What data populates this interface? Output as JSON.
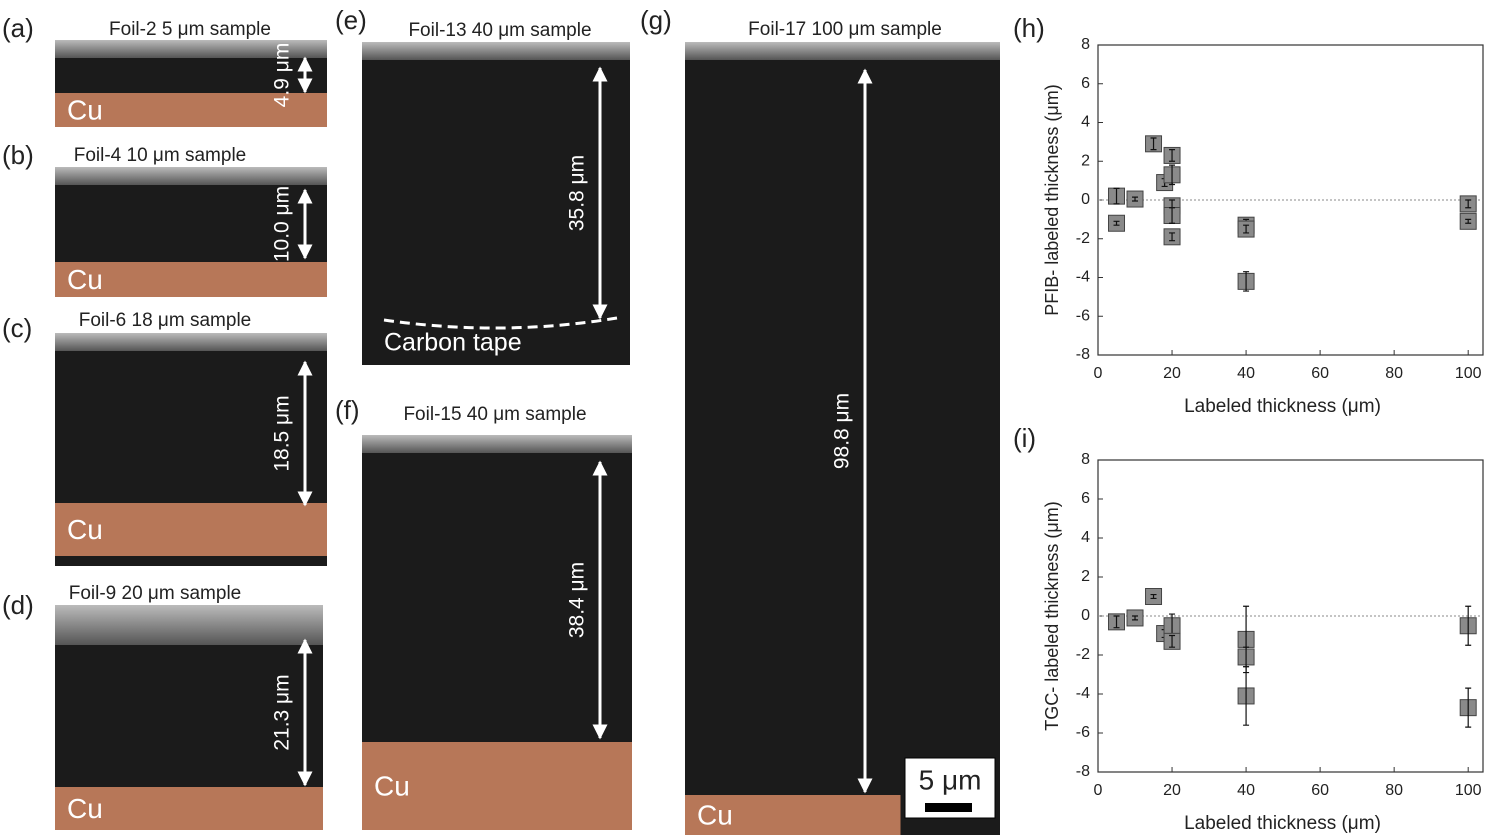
{
  "panels": [
    {
      "letter": "(a)",
      "title": "Foil-2 5 μm sample",
      "thickness": "4.9 μm",
      "substrate": "Cu"
    },
    {
      "letter": "(b)",
      "title": "Foil-4 10 μm sample",
      "thickness": "10.0 μm",
      "substrate": "Cu"
    },
    {
      "letter": "(c)",
      "title": "Foil-6 18 μm sample",
      "thickness": "18.5 μm",
      "substrate": "Cu"
    },
    {
      "letter": "(d)",
      "title": "Foil-9 20 μm sample",
      "thickness": "21.3 μm",
      "substrate": "Cu"
    },
    {
      "letter": "(e)",
      "title": "Foil-13 40 μm sample",
      "thickness": "35.8 μm",
      "substrate": "Carbon tape"
    },
    {
      "letter": "(f)",
      "title": "Foil-15 40 μm sample",
      "thickness": "38.4 μm",
      "substrate": "Cu"
    },
    {
      "letter": "(g)",
      "title": "Foil-17 100 μm sample",
      "thickness": "98.8 μm",
      "substrate": "Cu",
      "scale_bar": "5 μm"
    }
  ],
  "chart_data": [
    {
      "type": "scatter",
      "label": "(h)",
      "x_label": "Labeled thickness (μm)",
      "y_label": "PFIB- labeled thickness (μm)",
      "xlim": [
        0,
        104
      ],
      "ylim": [
        -8,
        8
      ],
      "xticks": [
        0,
        20,
        40,
        60,
        80,
        100
      ],
      "yticks": [
        -8,
        -6,
        -4,
        -2,
        0,
        2,
        4,
        6,
        8
      ],
      "reference_line": 0,
      "series": [
        {
          "color": "#8a8a8a",
          "x": [
            5,
            5,
            10,
            15,
            18,
            20,
            20,
            20,
            20,
            20,
            40,
            40,
            40,
            100,
            100
          ],
          "values": [
            0.2,
            -1.2,
            0.05,
            2.9,
            0.9,
            2.3,
            1.3,
            -0.3,
            -0.8,
            -1.9,
            -1.3,
            -1.5,
            -4.2,
            -0.2,
            -1.1
          ],
          "errors": [
            0.4,
            0.1,
            0.1,
            0.3,
            0.2,
            0.3,
            0.5,
            0.3,
            0.4,
            0.2,
            0.3,
            0.2,
            0.5,
            0.2,
            0.1
          ]
        }
      ]
    },
    {
      "type": "scatter",
      "label": "(i)",
      "x_label": "Labeled thickness (μm)",
      "y_label": "TGC- labeled thickness (μm)",
      "xlim": [
        0,
        104
      ],
      "ylim": [
        -8,
        8
      ],
      "xticks": [
        0,
        20,
        40,
        60,
        80,
        100
      ],
      "yticks": [
        -8,
        -6,
        -4,
        -2,
        0,
        2,
        4,
        6,
        8
      ],
      "reference_line": 0,
      "series": [
        {
          "color": "#8a8a8a",
          "x": [
            5,
            10,
            15,
            18,
            20,
            20,
            40,
            40,
            40,
            100,
            100
          ],
          "values": [
            -0.3,
            -0.1,
            1.0,
            -0.9,
            -0.5,
            -1.3,
            -1.2,
            -2.1,
            -4.1,
            -0.5,
            -4.7
          ],
          "errors": [
            0.3,
            0.1,
            0.1,
            0.2,
            0.6,
            0.3,
            1.7,
            0.5,
            1.5,
            1.0,
            1.0
          ]
        }
      ]
    }
  ]
}
